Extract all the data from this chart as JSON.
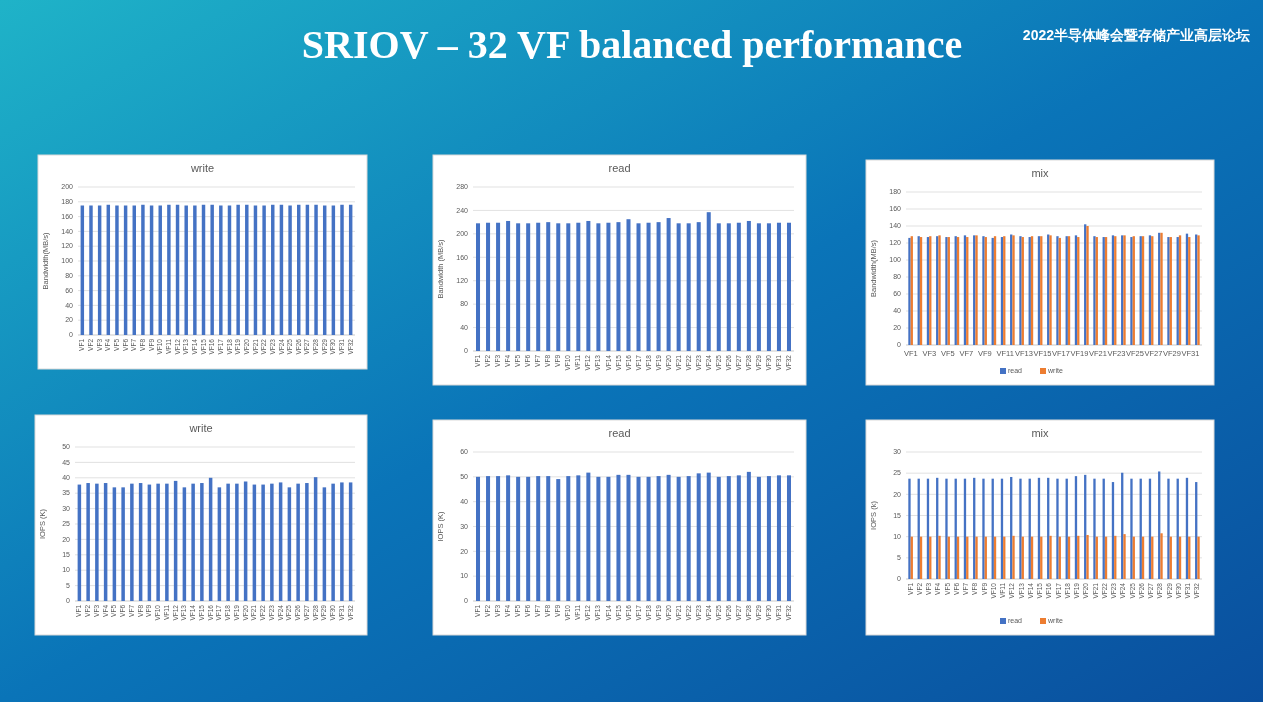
{
  "chart_data": [
    {
      "type": "other",
      "title": "SRIOV – 32 VF balanced performance",
      "annotations": [
        "2022半导体峰会暨存储产业高层论坛"
      ]
    },
    {
      "type": "bar",
      "title": "write",
      "ylabel": "Bandwidth(MB/s)",
      "categories": [
        "VF1",
        "VF2",
        "VF3",
        "VF4",
        "VF5",
        "VF6",
        "VF7",
        "VF8",
        "VF9",
        "VF10",
        "VF11",
        "VF12",
        "VF13",
        "VF14",
        "VF15",
        "VF16",
        "VF17",
        "VF18",
        "VF19",
        "VF20",
        "VF21",
        "VF22",
        "VF23",
        "VF24",
        "VF25",
        "VF26",
        "VF27",
        "VF28",
        "VF29",
        "VF30",
        "VF31",
        "VF32"
      ],
      "ylim": [
        0,
        200
      ],
      "yticks": [
        0,
        20,
        40,
        60,
        80,
        100,
        120,
        140,
        160,
        180,
        200
      ],
      "grid": "y",
      "legend": false,
      "series": [
        {
          "color": "#4472c4",
          "values": [
            175,
            175,
            175,
            176,
            175,
            175,
            175,
            176,
            175,
            175,
            176,
            176,
            175,
            175,
            176,
            176,
            175,
            175,
            176,
            176,
            175,
            175,
            176,
            176,
            175,
            176,
            176,
            176,
            175,
            175,
            176,
            176
          ]
        }
      ]
    },
    {
      "type": "bar",
      "title": "read",
      "ylabel": "Bandwidth (MB/s)",
      "categories": [
        "VF1",
        "VF2",
        "VF3",
        "VF4",
        "VF5",
        "VF6",
        "VF7",
        "VF8",
        "VF9",
        "VF10",
        "VF11",
        "VF12",
        "VF13",
        "VF14",
        "VF15",
        "VF16",
        "VF17",
        "VF18",
        "VF19",
        "VF20",
        "VF21",
        "VF22",
        "VF23",
        "VF24",
        "VF25",
        "VF26",
        "VF27",
        "VF28",
        "VF29",
        "VF30",
        "VF31",
        "VF32"
      ],
      "ylim": [
        0,
        280
      ],
      "yticks": [
        0,
        40,
        80,
        120,
        160,
        200,
        240,
        280
      ],
      "grid": "y",
      "legend": false,
      "series": [
        {
          "color": "#4472c4",
          "values": [
            218,
            219,
            219,
            222,
            218,
            218,
            219,
            220,
            218,
            218,
            219,
            222,
            218,
            219,
            220,
            225,
            218,
            219,
            220,
            227,
            218,
            218,
            220,
            237,
            218,
            218,
            219,
            222,
            218,
            218,
            219,
            219
          ]
        }
      ]
    },
    {
      "type": "bar",
      "title": "mix",
      "ylabel": "Bandwidth(MB/s)",
      "categories": [
        "VF1",
        null,
        "VF3",
        null,
        "VF5",
        null,
        "VF7",
        null,
        "VF9",
        null,
        "VF11",
        null,
        "VF13",
        null,
        "VF15",
        null,
        "VF17",
        null,
        "VF19",
        null,
        "VF21",
        null,
        "VF23",
        null,
        "VF25",
        null,
        "VF27",
        null,
        "VF29",
        null,
        "VF31",
        null
      ],
      "ylim": [
        0,
        180
      ],
      "yticks": [
        0,
        20,
        40,
        60,
        80,
        100,
        120,
        140,
        160,
        180
      ],
      "grid": "y",
      "legend": "bottom",
      "series": [
        {
          "name": "read",
          "color": "#4472c4",
          "values": [
            126,
            128,
            127,
            128,
            127,
            128,
            129,
            129,
            128,
            126,
            127,
            130,
            128,
            127,
            128,
            130,
            128,
            128,
            129,
            142,
            128,
            127,
            129,
            129,
            127,
            128,
            129,
            132,
            127,
            127,
            131,
            130
          ]
        },
        {
          "name": "write",
          "color": "#ed7d31",
          "values": [
            128,
            127,
            128,
            129,
            127,
            127,
            127,
            129,
            127,
            128,
            128,
            129,
            127,
            128,
            128,
            129,
            126,
            128,
            127,
            140,
            127,
            127,
            128,
            129,
            128,
            128,
            128,
            132,
            127,
            129,
            127,
            129
          ]
        }
      ]
    },
    {
      "type": "bar",
      "title": "write",
      "ylabel": "IOPS (K)",
      "categories": [
        "VF1",
        "VF2",
        "VF3",
        "VF4",
        "VF5",
        "VF6",
        "VF7",
        "VF8",
        "VF9",
        "VF10",
        "VF11",
        "VF12",
        "VF13",
        "VF14",
        "VF15",
        "VF16",
        "VF17",
        "VF18",
        "VF19",
        "VF20",
        "VF21",
        "VF22",
        "VF23",
        "VF24",
        "VF25",
        "VF26",
        "VF27",
        "VF28",
        "VF29",
        "VF30",
        "VF31",
        "VF32"
      ],
      "ylim": [
        0,
        50
      ],
      "yticks": [
        0,
        5,
        10,
        15,
        20,
        25,
        30,
        35,
        40,
        45,
        50
      ],
      "grid": "y",
      "legend": false,
      "series": [
        {
          "color": "#4472c4",
          "values": [
            37.8,
            38.3,
            38.1,
            38.3,
            36.9,
            36.9,
            38.1,
            38.3,
            37.8,
            38.1,
            38.1,
            39.0,
            36.9,
            38.1,
            38.3,
            40.0,
            36.9,
            38.1,
            38.1,
            38.8,
            37.8,
            37.8,
            38.1,
            38.5,
            36.9,
            38.1,
            38.3,
            40.2,
            36.9,
            38.1,
            38.5,
            38.5
          ]
        }
      ]
    },
    {
      "type": "bar",
      "title": "read",
      "ylabel": "IOPS (K)",
      "categories": [
        "VF1",
        "VF2",
        "VF3",
        "VF4",
        "VF5",
        "VF6",
        "VF7",
        "VF8",
        "VF9",
        "VF10",
        "VF11",
        "VF12",
        "VF13",
        "VF14",
        "VF15",
        "VF16",
        "VF17",
        "VF18",
        "VF19",
        "VF20",
        "VF21",
        "VF22",
        "VF23",
        "VF24",
        "VF25",
        "VF26",
        "VF27",
        "VF28",
        "VF29",
        "VF30",
        "VF31",
        "VF32"
      ],
      "ylim": [
        0,
        60
      ],
      "yticks": [
        0,
        10,
        20,
        30,
        40,
        50,
        60
      ],
      "grid": "y",
      "legend": false,
      "series": [
        {
          "color": "#4472c4",
          "values": [
            50,
            50.3,
            50.3,
            50.6,
            50,
            50,
            50.3,
            50.3,
            49.1,
            50.3,
            50.6,
            51.7,
            50,
            50,
            50.8,
            50.8,
            50,
            50,
            50.3,
            50.8,
            50,
            50.3,
            51.4,
            51.7,
            50,
            50.3,
            50.6,
            52,
            50,
            50.3,
            50.6,
            50.6
          ]
        }
      ]
    },
    {
      "type": "bar",
      "title": "mix",
      "ylabel": "IOPS (k)",
      "categories": [
        "VF1",
        "VF2",
        "VF3",
        "VF4",
        "VF5",
        "VF6",
        "VF7",
        "VF8",
        "VF9",
        "VF10",
        "VF11",
        "VF12",
        "VF13",
        "VF14",
        "VF15",
        "VF16",
        "VF17",
        "VF18",
        "VF19",
        "VF20",
        "VF21",
        "VF22",
        "VF23",
        "VF24",
        "VF25",
        "VF26",
        "VF27",
        "VF28",
        "VF29",
        "VF30",
        "VF31",
        "VF32"
      ],
      "ylim": [
        0,
        30
      ],
      "yticks": [
        0,
        5,
        10,
        15,
        20,
        25,
        30
      ],
      "grid": "y",
      "legend": "bottom",
      "series": [
        {
          "name": "read",
          "color": "#4472c4",
          "values": [
            23.7,
            23.7,
            23.7,
            23.9,
            23.7,
            23.7,
            23.7,
            23.9,
            23.7,
            23.7,
            23.7,
            24.1,
            23.7,
            23.7,
            23.9,
            23.9,
            23.7,
            23.7,
            24.3,
            24.6,
            23.7,
            23.7,
            22.9,
            25.1,
            23.7,
            23.7,
            23.7,
            25.4,
            23.7,
            23.7,
            23.9,
            22.9
          ]
        },
        {
          "name": "write",
          "color": "#ed7d31",
          "values": [
            10,
            10,
            10,
            10.2,
            10,
            10,
            10,
            10,
            10,
            10,
            10,
            10.2,
            10,
            10,
            10,
            10.2,
            10,
            10,
            10.2,
            10.4,
            10,
            10,
            10.2,
            10.6,
            10,
            10,
            10,
            10.8,
            10,
            10,
            10,
            10
          ]
        }
      ]
    }
  ]
}
